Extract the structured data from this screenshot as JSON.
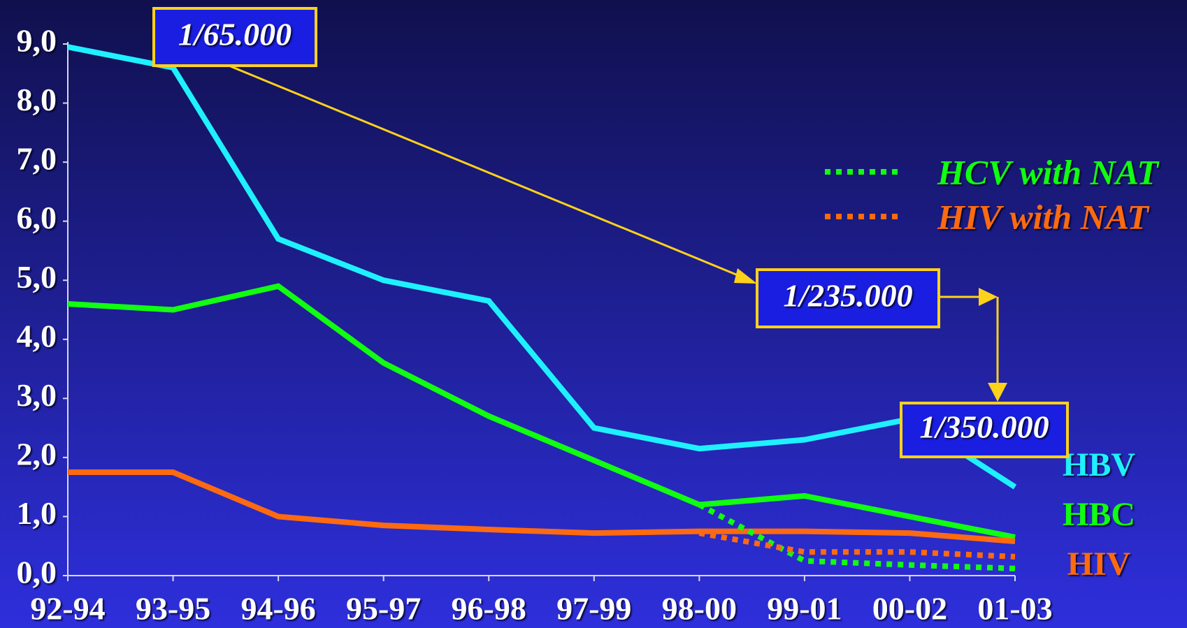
{
  "chart_data": {
    "type": "line",
    "categories": [
      "92-94",
      "93-95",
      "94-96",
      "95-97",
      "96-98",
      "97-99",
      "98-00",
      "99-01",
      "00-02",
      "01-03"
    ],
    "series": [
      {
        "name": "HBV",
        "color": "#1ff0ff",
        "values": [
          8.95,
          8.6,
          5.7,
          5.0,
          4.65,
          2.5,
          2.15,
          2.3,
          2.65,
          1.5
        ]
      },
      {
        "name": "HBC",
        "color": "#11ff11",
        "values": [
          4.6,
          4.5,
          4.9,
          3.6,
          2.7,
          1.95,
          1.2,
          1.35,
          1.0,
          0.65
        ]
      },
      {
        "name": "HIV",
        "color": "#ff6a10",
        "values": [
          1.75,
          1.75,
          1.0,
          0.85,
          0.78,
          0.72,
          0.75,
          0.75,
          0.72,
          0.58
        ]
      },
      {
        "name": "HCV with NAT",
        "color": "#11ff11",
        "dashed": true,
        "values": [
          null,
          null,
          null,
          null,
          null,
          null,
          1.2,
          0.25,
          0.18,
          0.12
        ]
      },
      {
        "name": "HIV  with NAT",
        "color": "#ff6a10",
        "dashed": true,
        "values": [
          null,
          null,
          null,
          null,
          null,
          null,
          0.72,
          0.4,
          0.4,
          0.32
        ]
      }
    ],
    "ylim": [
      0,
      9
    ],
    "yticks": [
      {
        "value": 0,
        "label": "0,0"
      },
      {
        "value": 1,
        "label": "1,0"
      },
      {
        "value": 2,
        "label": "2,0"
      },
      {
        "value": 3,
        "label": "3,0"
      },
      {
        "value": 4,
        "label": "4,0"
      },
      {
        "value": 5,
        "label": "5,0"
      },
      {
        "value": 6,
        "label": "6,0"
      },
      {
        "value": 7,
        "label": "7,0"
      },
      {
        "value": 8,
        "label": "8,0"
      },
      {
        "value": 9,
        "label": "9,0"
      }
    ],
    "annotations": [
      "1/65.000",
      "1/235.000",
      "1/350.000"
    ]
  }
}
